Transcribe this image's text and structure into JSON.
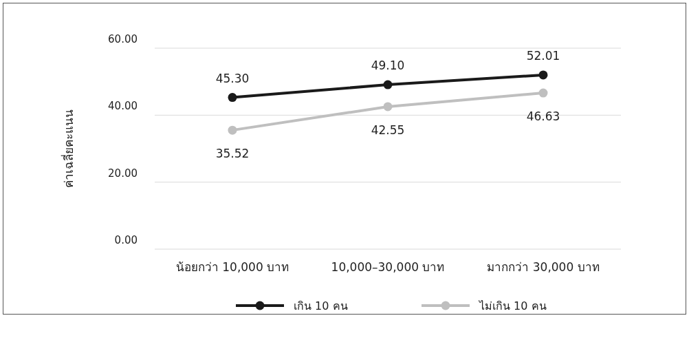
{
  "chart_data": {
    "type": "line",
    "ylabel": "ค่าเฉลี่ยคะแนน",
    "categories": [
      "น้อยกว่า 10,000 บาท",
      "10,000–30,000 บาท",
      "มากกว่า 30,000 บาท"
    ],
    "series": [
      {
        "name": "เกิน 10 คน",
        "color": "#1a1a1a",
        "values": [
          45.3,
          49.1,
          52.01
        ],
        "value_labels": [
          "45.30",
          "49.10",
          "52.01"
        ]
      },
      {
        "name": "ไม่เกิน 10 คน",
        "color": "#bfbfbf",
        "values": [
          35.52,
          42.55,
          46.63
        ],
        "value_labels": [
          "35.52",
          "42.55",
          "46.63"
        ]
      }
    ],
    "ylim": [
      0,
      60
    ],
    "yticks": [
      {
        "value": 0,
        "label": "0.00"
      },
      {
        "value": 20,
        "label": "20.00"
      },
      {
        "value": 40,
        "label": "40.00"
      },
      {
        "value": 60,
        "label": "60.00"
      }
    ],
    "grid": "y",
    "legend": "bottom",
    "marker": "circle",
    "line_style": "solid"
  }
}
